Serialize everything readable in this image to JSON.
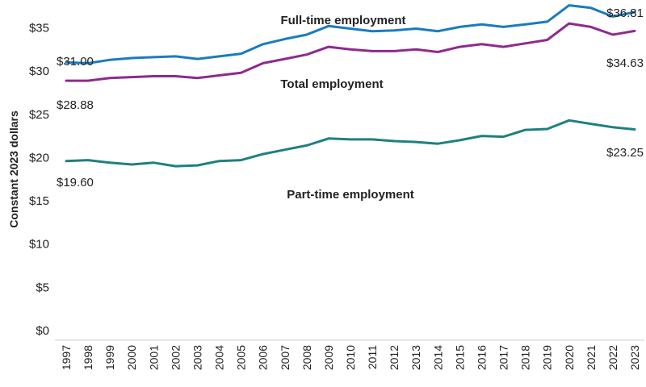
{
  "chart_data": {
    "type": "line",
    "title": "",
    "xlabel": "",
    "ylabel": "Constant 2023 dollars",
    "ylim": [
      0,
      40
    ],
    "y_ticks": [
      0,
      5,
      10,
      15,
      20,
      25,
      30,
      35
    ],
    "y_tick_labels": [
      "$0",
      "$5",
      "$10",
      "$15",
      "$20",
      "$25",
      "$30",
      "$35"
    ],
    "grid": false,
    "legend": "none (inline series labels)",
    "x": [
      "1997",
      "1998",
      "1999",
      "2000",
      "2001",
      "2002",
      "2003",
      "2004",
      "2005",
      "2006",
      "2007",
      "2008",
      "2009",
      "2010",
      "2011",
      "2012",
      "2013",
      "2014",
      "2015",
      "2016",
      "2017",
      "2018",
      "2019",
      "2020",
      "2021",
      "2022",
      "2023"
    ],
    "series": [
      {
        "name": "Full-time employment",
        "color": "#1a7bbf",
        "values": [
          31.0,
          30.9,
          31.3,
          31.5,
          31.6,
          31.7,
          31.4,
          31.7,
          32.0,
          33.1,
          33.7,
          34.2,
          35.2,
          34.9,
          34.6,
          34.7,
          34.9,
          34.6,
          35.1,
          35.4,
          35.1,
          35.4,
          35.7,
          37.6,
          37.3,
          36.3,
          36.81
        ],
        "start_label": "$31.00",
        "end_label": "$36.81"
      },
      {
        "name": "Total employment",
        "color": "#8e2a8e",
        "values": [
          28.88,
          28.88,
          29.2,
          29.3,
          29.4,
          29.4,
          29.2,
          29.5,
          29.8,
          30.9,
          31.4,
          31.9,
          32.8,
          32.5,
          32.3,
          32.3,
          32.5,
          32.2,
          32.8,
          33.1,
          32.8,
          33.2,
          33.6,
          35.5,
          35.1,
          34.2,
          34.63
        ],
        "start_label": "$28.88",
        "end_label": "$34.63"
      },
      {
        "name": "Part-time employment",
        "color": "#1e8080",
        "values": [
          19.6,
          19.7,
          19.4,
          19.2,
          19.4,
          19.0,
          19.1,
          19.6,
          19.7,
          20.4,
          20.9,
          21.4,
          22.2,
          22.1,
          22.1,
          21.9,
          21.8,
          21.6,
          22.0,
          22.5,
          22.4,
          23.2,
          23.3,
          24.3,
          23.9,
          23.5,
          23.25
        ],
        "start_label": "$19.60",
        "end_label": "$23.25"
      }
    ]
  }
}
